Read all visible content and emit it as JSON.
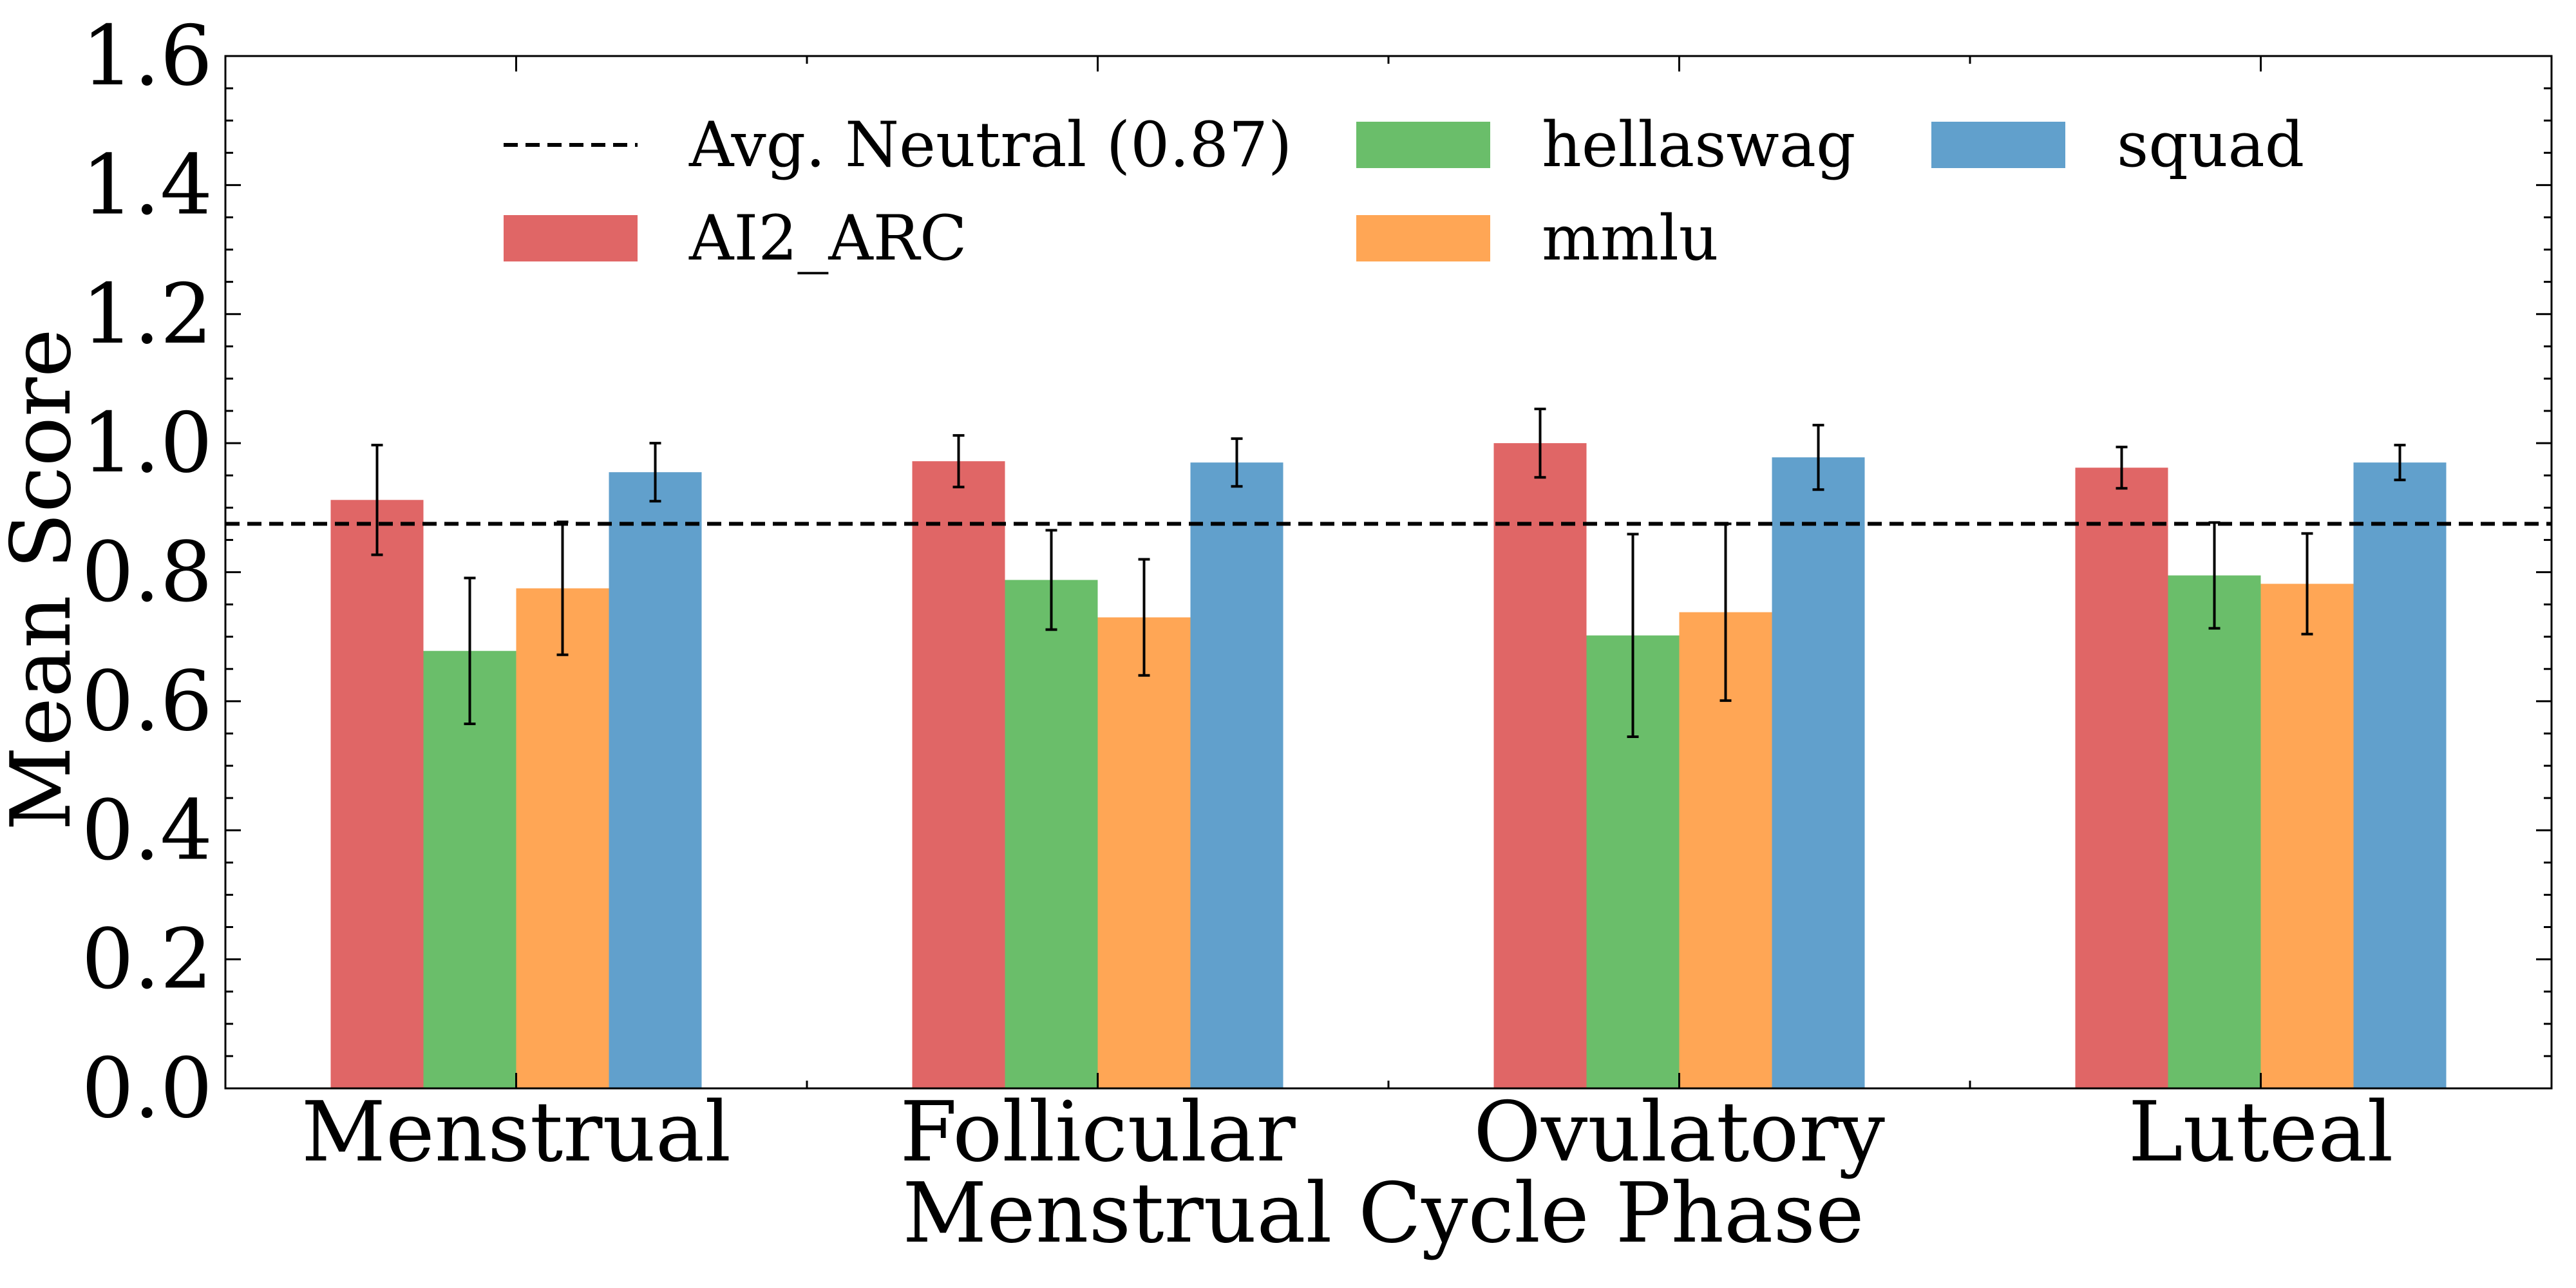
{
  "chart_data": {
    "type": "bar",
    "title": "",
    "xlabel": "Menstrual Cycle Phase",
    "ylabel": "Mean Score",
    "ylim": [
      0,
      1.6
    ],
    "yticks": [
      "0.0",
      "0.2",
      "0.4",
      "0.6",
      "0.8",
      "1.0",
      "1.2",
      "1.4",
      "1.6"
    ],
    "categories": [
      "Menstrual",
      "Follicular",
      "Ovulatory",
      "Luteal"
    ],
    "series": [
      {
        "name": "AI2_ARC",
        "color": "#e06666",
        "values": [
          0.912,
          0.972,
          1.0,
          0.962
        ],
        "errors": [
          0.085,
          0.04,
          0.053,
          0.032
        ]
      },
      {
        "name": "hellaswag",
        "color": "#6abe6a",
        "values": [
          0.678,
          0.788,
          0.702,
          0.795
        ],
        "errors": [
          0.113,
          0.077,
          0.157,
          0.082
        ]
      },
      {
        "name": "mmlu",
        "color": "#ffa655",
        "values": [
          0.775,
          0.73,
          0.738,
          0.782
        ],
        "errors": [
          0.103,
          0.09,
          0.137,
          0.078
        ]
      },
      {
        "name": "squad",
        "color": "#61a0cc",
        "values": [
          0.955,
          0.97,
          0.978,
          0.97
        ],
        "errors": [
          0.045,
          0.037,
          0.05,
          0.027
        ]
      }
    ],
    "reference_line": {
      "label": "Avg. Neutral (0.87)",
      "value": 0.875
    },
    "legend": {
      "placement": "top",
      "columns": 3
    },
    "grid": false
  }
}
